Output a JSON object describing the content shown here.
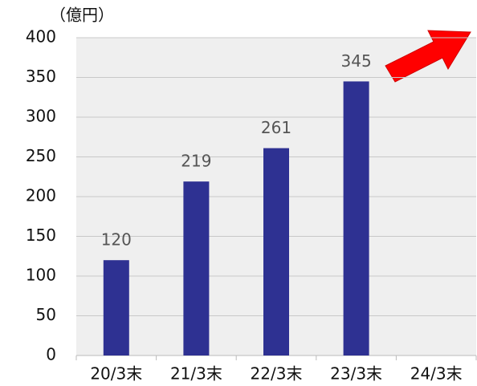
{
  "chart_data": {
    "type": "bar",
    "y_axis_label": "（億円）",
    "categories": [
      "20/3末",
      "21/3末",
      "22/3末",
      "23/3末",
      "24/3末"
    ],
    "values": [
      120,
      219,
      261,
      345,
      null
    ],
    "color": "#2e3192",
    "ylim": [
      0,
      400
    ],
    "yticks": [
      0,
      50,
      100,
      150,
      200,
      250,
      300,
      350,
      400
    ],
    "grid": true
  }
}
